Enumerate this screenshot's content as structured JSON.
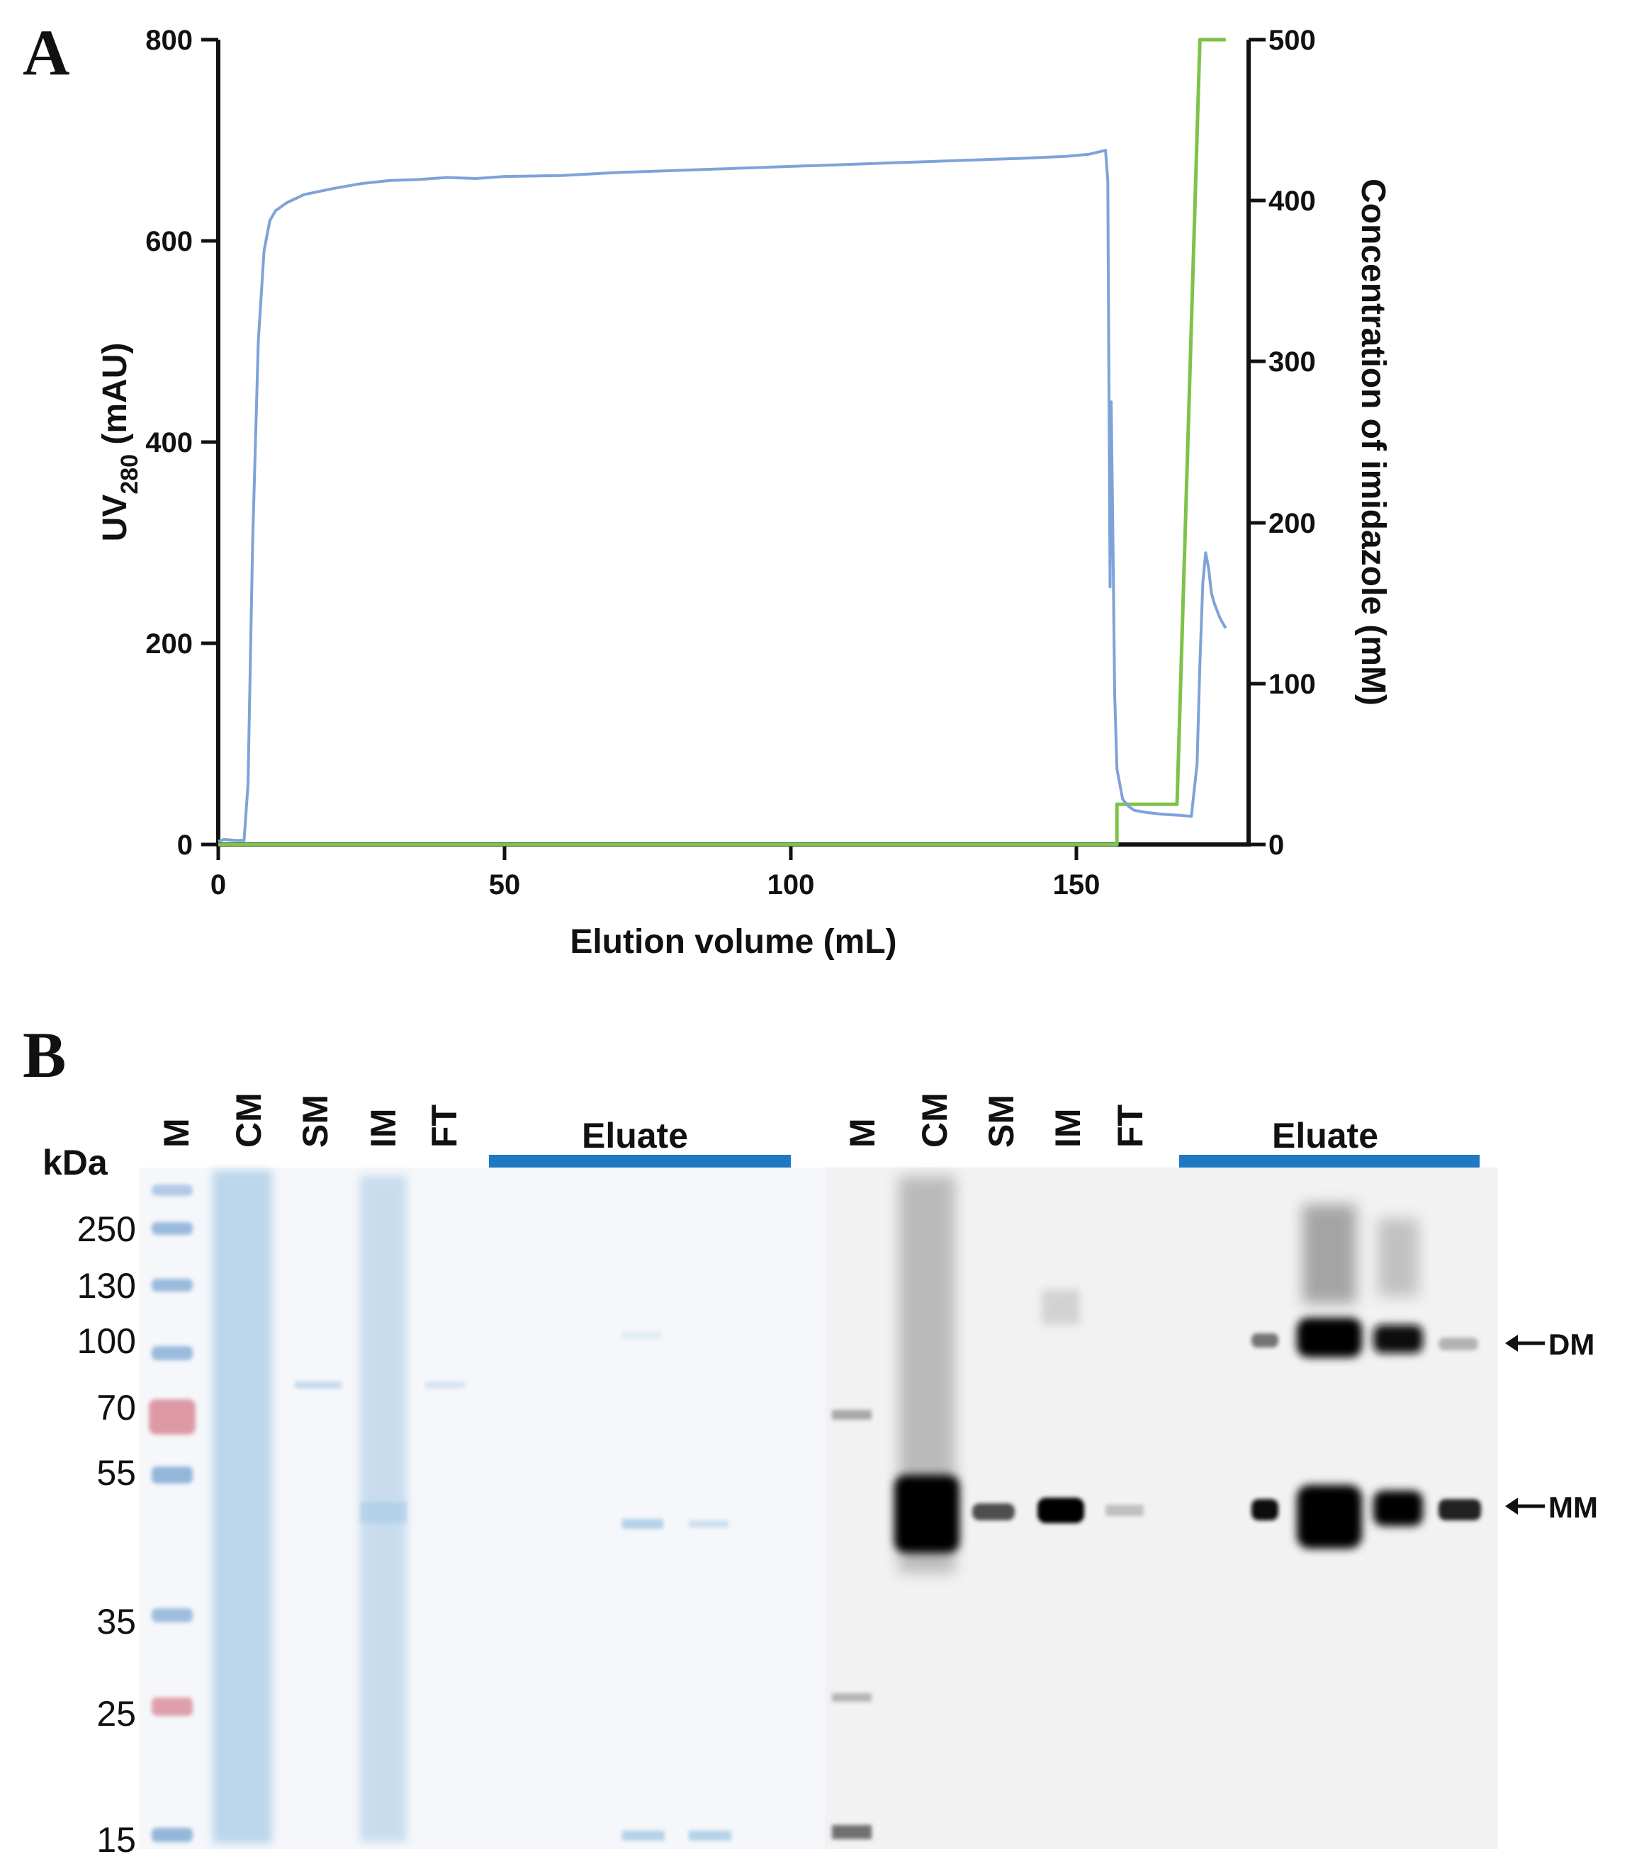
{
  "panel_a": {
    "letter": "A",
    "chart_data": {
      "type": "line",
      "xlabel": "Elution volume (mL)",
      "ylabel_left": {
        "main": "UV",
        "sub": "280",
        "unit": " (mAU)"
      },
      "ylabel_right": "Concentration of imidazole (mM)",
      "xlim": [
        0,
        180
      ],
      "ylim_left": [
        0,
        800
      ],
      "ylim_right": [
        0,
        500
      ],
      "x_ticks": [
        "0",
        "50",
        "100",
        "150"
      ],
      "y_left_ticks": [
        "0",
        "200",
        "400",
        "600",
        "800"
      ],
      "y_right_ticks": [
        "0",
        "100",
        "200",
        "300",
        "400",
        "500"
      ],
      "grid": false,
      "series": [
        {
          "color": "#7ea3d8",
          "axis": "left",
          "x": [
            0,
            1,
            3,
            4.5,
            5.2,
            6,
            7,
            8,
            9,
            10,
            12,
            15,
            20,
            25,
            30,
            35,
            40,
            45,
            50,
            60,
            70,
            80,
            90,
            100,
            110,
            120,
            130,
            140,
            148,
            152,
            155,
            155.4,
            155.8,
            156.0,
            156.3,
            156.6,
            157,
            158,
            159,
            160,
            162,
            165,
            168,
            170,
            171,
            171.5,
            172,
            172.5,
            173,
            173.5,
            174,
            175,
            176
          ],
          "values": [
            3,
            5,
            4,
            4,
            60,
            300,
            500,
            590,
            620,
            630,
            638,
            646,
            652,
            657,
            660,
            661,
            663,
            662,
            664,
            665,
            668,
            670,
            672,
            674,
            676,
            678,
            680,
            682,
            684,
            686,
            690,
            660,
            256,
            440,
            300,
            150,
            75,
            45,
            38,
            34,
            32,
            30,
            29,
            28,
            80,
            180,
            260,
            290,
            275,
            250,
            240,
            225,
            215
          ]
        },
        {
          "color": "#7ec24a",
          "axis": "right",
          "x": [
            0,
            157,
            157,
            167.5,
            167.5,
            171.5,
            171.5,
            176
          ],
          "values": [
            0,
            0,
            25,
            25,
            25,
            500,
            500,
            500
          ]
        }
      ]
    }
  },
  "panel_b": {
    "letter": "B",
    "kda_label": "kDa",
    "mw_markers": [
      "250",
      "130",
      "100",
      "70",
      "55",
      "35",
      "25",
      "15"
    ],
    "lane_labels": [
      "M",
      "CM",
      "SM",
      "IM",
      "FT"
    ],
    "eluate_label": "Eluate",
    "arrows": [
      "DM",
      "MM"
    ],
    "ladder_colors": {
      "blue": "#7ba7d4",
      "red": "#d98a98"
    },
    "eluate_bar_color": "#1f78c2"
  }
}
